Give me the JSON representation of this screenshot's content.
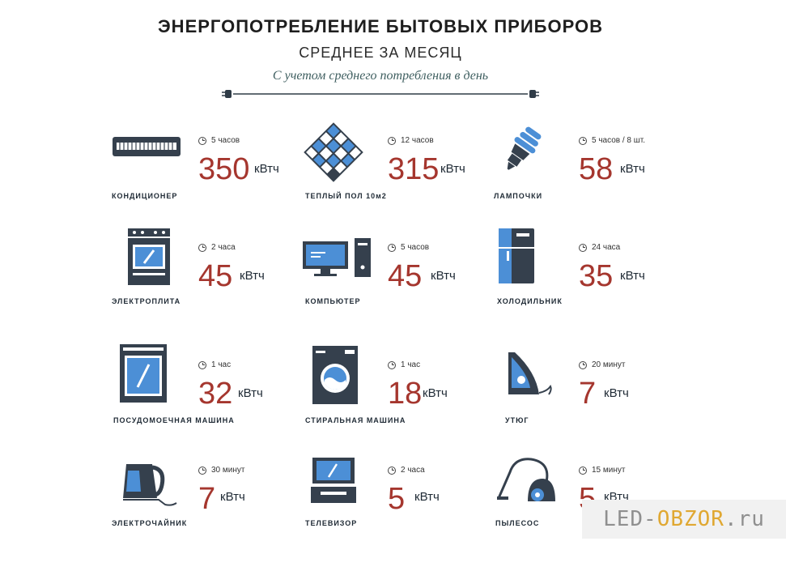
{
  "header": {
    "title": "ЭНЕРГОПОТРЕБЛЕНИЕ БЫТОВЫХ ПРИБОРОВ",
    "subtitle": "СРЕДНЕЕ ЗА МЕСЯЦ",
    "note": "С учетом среднего потребления в день"
  },
  "unit_label": "кВтч",
  "colors": {
    "value": "#a5362e",
    "icon": "#35404d",
    "accent": "#4c8fd6"
  },
  "items": [
    {
      "name": "КОНДИЦИОНЕР",
      "duration": "5 часов",
      "value": "350",
      "icon": "air-conditioner-icon"
    },
    {
      "name": "ТЕПЛЫЙ ПОЛ 10м2",
      "duration": "12 часов",
      "value": "315",
      "icon": "heated-floor-icon"
    },
    {
      "name": "ЛАМПОЧКИ",
      "duration": "5 часов / 8 шт.",
      "value": "58",
      "icon": "light-bulb-icon"
    },
    {
      "name": "ЭЛЕКТРОПЛИТА",
      "duration": "2 часа",
      "value": "45",
      "icon": "electric-stove-icon"
    },
    {
      "name": "КОМПЬЮТЕР",
      "duration": "5 часов",
      "value": "45",
      "icon": "computer-icon"
    },
    {
      "name": "ХОЛОДИЛЬНИК",
      "duration": "24 часа",
      "value": "35",
      "icon": "fridge-icon"
    },
    {
      "name": "ПОСУДОМОЕЧНАЯ МАШИНА",
      "duration": "1 час",
      "value": "32",
      "icon": "dishwasher-icon"
    },
    {
      "name": "СТИРАЛЬНАЯ МАШИНА",
      "duration": "1 час",
      "value": "18",
      "icon": "washing-machine-icon"
    },
    {
      "name": "УТЮГ",
      "duration": "20 минут",
      "value": "7",
      "icon": "iron-icon"
    },
    {
      "name": "ЭЛЕКТРОЧАЙНИК",
      "duration": "30 минут",
      "value": "7",
      "icon": "kettle-icon"
    },
    {
      "name": "ТЕЛЕВИЗОР",
      "duration": "2 часа",
      "value": "5",
      "icon": "tv-icon"
    },
    {
      "name": "ПЫЛЕСОС",
      "duration": "15 минут",
      "value": "5",
      "icon": "vacuum-cleaner-icon"
    }
  ],
  "watermark": {
    "part1": "LED-",
    "part2": "OBZOR",
    "part3": ".ru"
  }
}
